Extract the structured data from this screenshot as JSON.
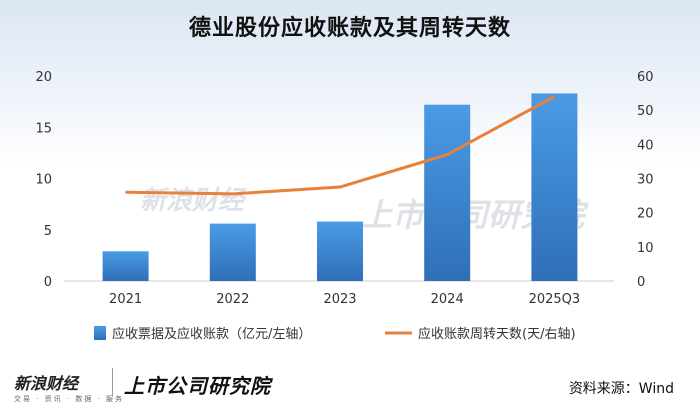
{
  "title": "德业股份应收账款及其周转天数",
  "source": "资料来源：Wind",
  "footer": {
    "sina_logo": "新浪财经",
    "sina_sub": "交易 · 资讯 · 数据 · 服务",
    "institute_logo": "上市公司研究院"
  },
  "watermark": {
    "sina": "新浪财经",
    "sina_sub": "交易 · 资讯 · 数据 · 服务",
    "institute": "上市公司研究院"
  },
  "colors": {
    "bar_top": "#4a9be6",
    "bar_bottom": "#2f6fb7",
    "line": "#e8823a",
    "axis": "#cccccc"
  },
  "chart_data": {
    "type": "bar",
    "categories": [
      "2021",
      "2022",
      "2023",
      "2024",
      "2025Q3"
    ],
    "series": [
      {
        "name": "应收票据及应收账款（亿元/左轴）",
        "type": "bar",
        "axis": "left",
        "values": [
          2.9,
          5.6,
          5.8,
          17.2,
          18.3
        ]
      },
      {
        "name": "应收账款周转天数(天/右轴)",
        "type": "line",
        "axis": "right",
        "values": [
          26,
          25.5,
          27.5,
          37,
          54
        ]
      }
    ],
    "y_left": {
      "min": 0,
      "max": 20,
      "ticks": [
        0,
        5,
        10,
        15,
        20
      ]
    },
    "y_right": {
      "min": 0,
      "max": 60,
      "ticks": [
        0,
        10,
        20,
        30,
        40,
        50,
        60
      ]
    },
    "legend_position": "bottom",
    "grid": false
  }
}
